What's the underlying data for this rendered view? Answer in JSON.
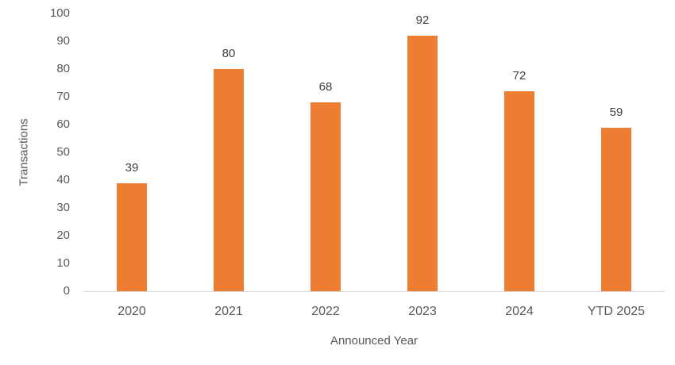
{
  "chart_data": {
    "type": "bar",
    "categories": [
      "2020",
      "2021",
      "2022",
      "2023",
      "2024",
      "YTD 2025"
    ],
    "values": [
      39,
      80,
      68,
      92,
      72,
      59
    ],
    "title": "",
    "xlabel": "Announced Year",
    "ylabel": "Transactions",
    "ylim": [
      0,
      100
    ],
    "ytick_step": 10,
    "yticks": [
      0,
      10,
      20,
      30,
      40,
      50,
      60,
      70,
      80,
      90,
      100
    ],
    "legend_position": "none",
    "grid": "off",
    "colors": {
      "bar": "#ED7D31",
      "axis_line": "#D9D9D9",
      "tick_label": "#595959",
      "axis_title": "#595959",
      "data_label": "#404040"
    }
  }
}
